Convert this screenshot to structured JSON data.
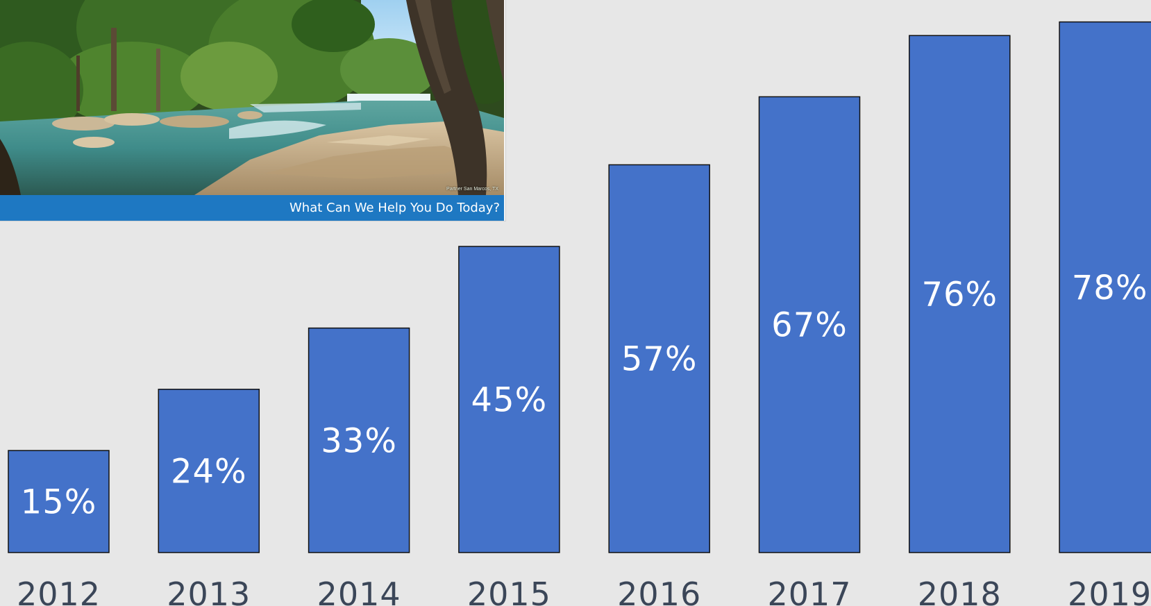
{
  "web_inset": {
    "banner_text": "What Can We Help You Do Today?",
    "photo_credit": "Partner San Marcos, TX",
    "banner_color": "#1e78c2"
  },
  "chart_data": {
    "type": "bar",
    "categories": [
      "2012",
      "2013",
      "2014",
      "2015",
      "2016",
      "2017",
      "2018",
      "2019"
    ],
    "values": [
      15,
      24,
      33,
      45,
      57,
      67,
      76,
      78
    ],
    "data_labels": [
      "15%",
      "24%",
      "33%",
      "45%",
      "57%",
      "67%",
      "76%",
      "78%"
    ],
    "title": "",
    "xlabel": "",
    "ylabel": "",
    "ylim": [
      0,
      85
    ],
    "grid": false,
    "bar_color": "#4472c9",
    "background_color": "#e7e7e7"
  }
}
